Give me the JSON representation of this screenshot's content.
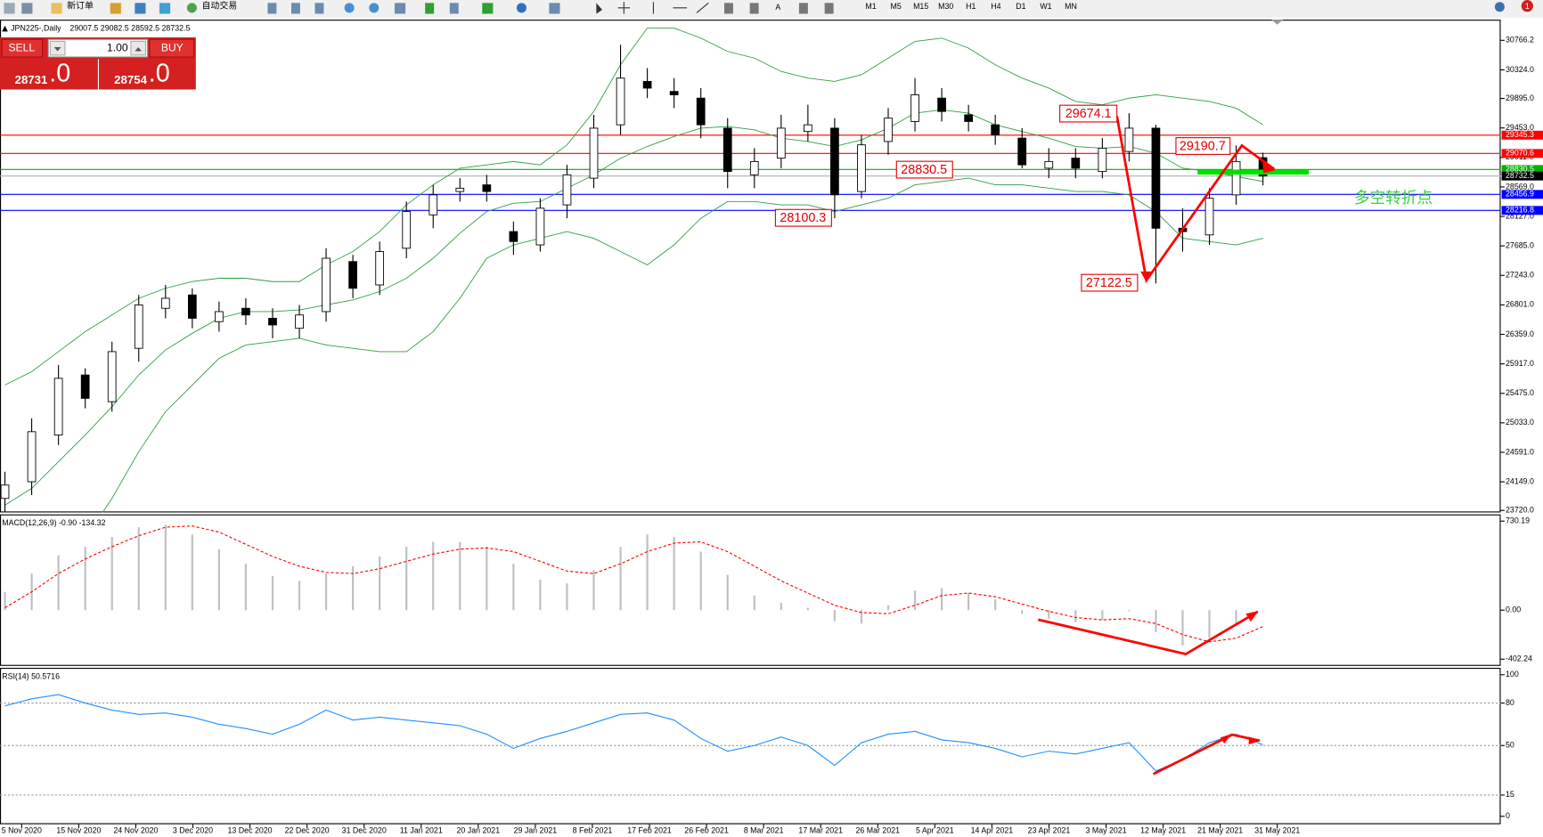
{
  "toolbar": {
    "new_order": "新订单",
    "auto_trading": "自动交易",
    "timeframes": [
      "M1",
      "M5",
      "M15",
      "M30",
      "H1",
      "H4",
      "D1",
      "W1",
      "MN"
    ],
    "notifications": "1"
  },
  "trade_panel": {
    "sell": "SELL",
    "buy": "BUY",
    "volume": "1.00",
    "sell_price": {
      "main": "28731",
      "big": ".0"
    },
    "buy_price": {
      "main": "28754",
      "big": ".0"
    }
  },
  "chart_data": [
    {
      "type": "candlestick",
      "title": "JPN225-,Daily",
      "ohlc_text": "29007.5 29082.5 28592.5 28732.5",
      "open": [
        23900,
        24150,
        24850,
        25750,
        25350,
        26150,
        26750,
        26950,
        26550,
        26750,
        26600,
        26450,
        26700,
        27450,
        27100,
        27650,
        28150,
        28500,
        28600,
        27900,
        27700,
        28300,
        28700,
        29500,
        30150,
        30000,
        29900,
        29450,
        28750,
        29000,
        29400,
        29450,
        28500,
        29250,
        29550,
        29900,
        29650,
        29500,
        29300,
        28850,
        29000,
        28800,
        29100,
        29450,
        27950,
        27850,
        28450,
        29007.5
      ],
      "high": [
        24300,
        25100,
        25900,
        25850,
        26250,
        26950,
        27100,
        27050,
        26850,
        26900,
        26750,
        26800,
        27650,
        27550,
        27750,
        28350,
        28600,
        28700,
        28750,
        28050,
        28400,
        28900,
        29650,
        30700,
        30350,
        30200,
        30050,
        29600,
        29150,
        29650,
        29800,
        29600,
        29350,
        29750,
        30200,
        30050,
        29800,
        29650,
        29450,
        29150,
        29150,
        29300,
        29674.1,
        29500,
        28250,
        28550,
        29190.7,
        29082.5
      ],
      "low": [
        23700,
        23950,
        24700,
        25250,
        25200,
        25950,
        26600,
        26450,
        26400,
        26500,
        26300,
        26300,
        26550,
        26900,
        26950,
        27500,
        27950,
        28350,
        28350,
        27550,
        27600,
        28100,
        28550,
        29350,
        29900,
        29750,
        29300,
        28550,
        28550,
        28850,
        29250,
        28100,
        28400,
        29050,
        29400,
        29550,
        29400,
        29200,
        28850,
        28700,
        28700,
        28700,
        28950,
        27122.5,
        27600,
        27700,
        28300,
        28592.5
      ],
      "close": [
        24100,
        24900,
        25700,
        25400,
        26100,
        26800,
        26900,
        26600,
        26700,
        26650,
        26500,
        26650,
        27500,
        27050,
        27600,
        28200,
        28450,
        28550,
        28500,
        27750,
        28250,
        28750,
        29450,
        30200,
        30050,
        29950,
        29500,
        28800,
        28950,
        29450,
        29500,
        28450,
        29200,
        29600,
        29950,
        29700,
        29550,
        29350,
        28900,
        28950,
        28850,
        29150,
        29450,
        27950,
        27900,
        28400,
        28950,
        28732.5
      ],
      "bands": {
        "color": "#2e9e3e",
        "upper": [
          25600,
          25800,
          26100,
          26400,
          26650,
          26900,
          27050,
          27150,
          27200,
          27200,
          27150,
          27150,
          27400,
          27600,
          27900,
          28300,
          28600,
          28850,
          28900,
          28950,
          28900,
          29200,
          29700,
          30400,
          30950,
          30950,
          30800,
          30600,
          30500,
          30300,
          30200,
          30150,
          30250,
          30500,
          30750,
          30800,
          30650,
          30400,
          30200,
          30050,
          29850,
          29800,
          29900,
          29950,
          29900,
          29850,
          29750,
          29500
        ],
        "middle": [
          23800,
          24050,
          24450,
          24850,
          25275,
          25750,
          26125,
          26375,
          26600,
          26700,
          26700,
          26725,
          26800,
          26875,
          27000,
          27200,
          27500,
          27875,
          28200,
          28325,
          28350,
          28550,
          28750,
          29000,
          29175,
          29325,
          29450,
          29475,
          29425,
          29300,
          29250,
          29175,
          29275,
          29450,
          29675,
          29725,
          29675,
          29500,
          29400,
          29300,
          29175,
          29150,
          29175,
          29075,
          28850,
          28800,
          28725,
          28650
        ],
        "lower": [
          22000,
          22300,
          22800,
          23300,
          23900,
          24600,
          25200,
          25600,
          26000,
          26200,
          26250,
          26300,
          26200,
          26150,
          26100,
          26100,
          26400,
          26900,
          27500,
          27700,
          27800,
          27900,
          27800,
          27600,
          27400,
          27700,
          28100,
          28350,
          28350,
          28300,
          28300,
          28200,
          28300,
          28400,
          28600,
          28650,
          28700,
          28600,
          28600,
          28550,
          28500,
          28500,
          28450,
          28200,
          27800,
          27750,
          27700,
          27800
        ]
      },
      "ylim": [
        23690,
        31076
      ],
      "yticks": [
        {
          "value": 30766.2,
          "label": "30766.2"
        },
        {
          "value": 30324,
          "label": "30324.0"
        },
        {
          "value": 29895,
          "label": "29895.0"
        },
        {
          "value": 29453,
          "label": "29453.0"
        },
        {
          "value": 29011,
          "label": "29011.0"
        },
        {
          "value": 28569,
          "label": "28569.0"
        },
        {
          "value": 28127,
          "label": "28127.0"
        },
        {
          "value": 27685,
          "label": "27685.0"
        },
        {
          "value": 27243,
          "label": "27243.0"
        },
        {
          "value": 26801,
          "label": "26801.0"
        },
        {
          "value": 26359,
          "label": "26359.0"
        },
        {
          "value": 25917,
          "label": "25917.0"
        },
        {
          "value": 25475,
          "label": "25475.0"
        },
        {
          "value": 25033,
          "label": "25033.0"
        },
        {
          "value": 24591,
          "label": "24591.0"
        },
        {
          "value": 24149,
          "label": "24149.0"
        },
        {
          "value": 23720,
          "label": "23720.0"
        }
      ],
      "hlines": [
        {
          "value": 29345.3,
          "color": "#ff0000",
          "tag_color": "#ff0000"
        },
        {
          "value": 29070.6,
          "color": "#ff0000",
          "tag_color": "#ff0000"
        },
        {
          "value": 28830.5,
          "color": "#00b000",
          "tag_color": "#00b000"
        },
        {
          "value": 28732.5,
          "color": "#b0b0b0",
          "tag_color": "#000000"
        },
        {
          "value": 28456.9,
          "color": "#0000ff",
          "tag_color": "#0000ff"
        },
        {
          "value": 28216.8,
          "color": "#0000ff",
          "tag_color": "#0000ff"
        }
      ],
      "annotations": [
        "29674.1",
        "29190.7",
        "28830.5",
        "28100.3",
        "27122.5",
        "多空转折点"
      ],
      "date_labels": [
        "5 Nov 2020",
        "15 Nov 2020",
        "24 Nov 2020",
        "3 Dec 2020",
        "13 Dec 2020",
        "22 Dec 2020",
        "31 Dec 2020",
        "11 Jan 2021",
        "20 Jan 2021",
        "29 Jan 2021",
        "8 Feb 2021",
        "17 Feb 2021",
        "26 Feb 2021",
        "8 Mar 2021",
        "17 Mar 2021",
        "26 Mar 2021",
        "5 Apr 2021",
        "14 Apr 2021",
        "23 Apr 2021",
        "3 May 2021",
        "12 May 2021",
        "21 May 2021",
        "31 May 2021"
      ]
    },
    {
      "type": "macd",
      "title": "MACD(12,26,9) -0.90 -134.32",
      "histogram_color": "#c0c0c0",
      "signal_color": "#ff0000",
      "histogram": [
        150,
        300,
        450,
        520,
        600,
        680,
        700,
        620,
        500,
        380,
        280,
        240,
        300,
        360,
        440,
        520,
        560,
        560,
        520,
        380,
        250,
        220,
        330,
        520,
        620,
        600,
        480,
        290,
        120,
        60,
        20,
        -90,
        -110,
        40,
        160,
        180,
        140,
        90,
        -30,
        -70,
        -100,
        -80,
        -10,
        -180,
        -290,
        -230,
        -110,
        -0.9
      ],
      "signal": [
        20,
        150,
        300,
        420,
        520,
        610,
        680,
        690,
        640,
        540,
        440,
        360,
        310,
        300,
        340,
        400,
        460,
        500,
        510,
        480,
        400,
        320,
        300,
        380,
        480,
        550,
        560,
        480,
        360,
        240,
        140,
        40,
        -20,
        -30,
        40,
        120,
        140,
        110,
        50,
        -10,
        -60,
        -80,
        -70,
        -110,
        -200,
        -260,
        -230,
        -134.32
      ],
      "ylim": [
        -457,
        777
      ],
      "yticks": [
        730.19,
        {
          "value": 0,
          "label": "0.00"
        },
        -402.24
      ]
    },
    {
      "type": "line",
      "title": "RSI(14) 50.5716",
      "color": "#1e90ff",
      "values": [
        78,
        83,
        86,
        80,
        75,
        72,
        73,
        70,
        65,
        62,
        58,
        65,
        75,
        68,
        70,
        68,
        66,
        64,
        58,
        48,
        55,
        60,
        66,
        72,
        73,
        68,
        55,
        46,
        50,
        56,
        50,
        36,
        52,
        58,
        60,
        54,
        52,
        48,
        42,
        46,
        44,
        48,
        52,
        32,
        40,
        52,
        58,
        50.5716
      ],
      "ylim": [
        -5.6,
        104.2
      ],
      "yticks": [
        100,
        80,
        50,
        15,
        0
      ],
      "levels": [
        80,
        50,
        15
      ]
    }
  ]
}
